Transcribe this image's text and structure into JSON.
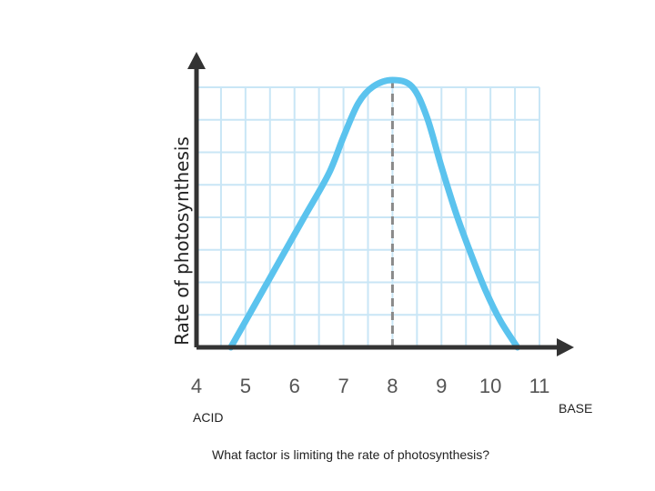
{
  "chart_data": {
    "type": "line",
    "title": "",
    "xlabel": "",
    "ylabel": "Rate of photosynthesis",
    "x_ticks": [
      "4",
      "5",
      "6",
      "7",
      "8",
      "9",
      "10",
      "11"
    ],
    "xlim": [
      4,
      11
    ],
    "ylim": [
      0,
      8
    ],
    "grid": true,
    "series": [
      {
        "color": "#5bc3ee",
        "points": [
          [
            4.7,
            0
          ],
          [
            5.2,
            1.3
          ],
          [
            5.7,
            2.6
          ],
          [
            6.2,
            3.9
          ],
          [
            6.7,
            5.2
          ],
          [
            7.0,
            6.3
          ],
          [
            7.3,
            7.3
          ],
          [
            7.6,
            7.8
          ],
          [
            8.0,
            8.0
          ],
          [
            8.4,
            7.8
          ],
          [
            8.7,
            6.9
          ],
          [
            9.0,
            5.4
          ],
          [
            9.3,
            4.0
          ],
          [
            9.6,
            2.8
          ],
          [
            9.9,
            1.7
          ],
          [
            10.2,
            0.8
          ],
          [
            10.55,
            0
          ]
        ]
      }
    ],
    "optimum_line_x": 8
  },
  "labels": {
    "left_end": "ACID",
    "right_end": "BASE",
    "question": "What factor is limiting the rate of photosynthesis?"
  },
  "colors": {
    "grid": "#c9e6f6",
    "axis": "#333333",
    "curve": "#5bc3ee",
    "dashed": "#8a8a8a"
  }
}
